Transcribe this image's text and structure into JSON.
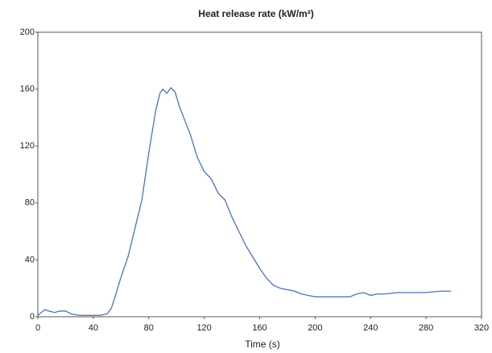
{
  "chart_data": {
    "type": "line",
    "title": "Heat release rate (kW/m²)",
    "x_label": "Time (s)",
    "x": [
      0,
      5,
      8,
      12,
      16,
      20,
      24,
      30,
      35,
      40,
      45,
      50,
      53,
      56,
      60,
      65,
      70,
      75,
      80,
      85,
      88,
      90,
      93,
      96,
      99,
      102,
      106,
      110,
      115,
      120,
      125,
      130,
      135,
      140,
      145,
      150,
      155,
      160,
      165,
      170,
      175,
      180,
      185,
      190,
      195,
      200,
      210,
      220,
      225,
      230,
      235,
      240,
      245,
      250,
      260,
      270,
      280,
      290,
      298
    ],
    "series": [
      {
        "name": "Heat release rate",
        "color": "#4a74b8",
        "values": [
          1,
          5,
          4,
          3,
          4,
          4,
          2,
          1,
          1,
          1,
          1,
          2,
          6,
          15,
          28,
          42,
          62,
          82,
          115,
          145,
          157,
          160,
          157,
          161,
          158,
          148,
          138,
          128,
          112,
          102,
          97,
          87,
          82,
          70,
          60,
          50,
          42,
          34,
          27,
          22,
          20,
          19,
          18,
          16,
          15,
          14,
          14,
          14,
          14,
          16,
          17,
          15,
          16,
          16,
          17,
          17,
          17,
          18,
          18
        ]
      }
    ],
    "xlim": [
      0,
      320
    ],
    "xticks": [
      0,
      40,
      80,
      120,
      160,
      200,
      240,
      280,
      320
    ],
    "ylim": [
      0,
      200
    ],
    "yticks": [
      0,
      40,
      80,
      120,
      160,
      200
    ],
    "grid": false
  }
}
